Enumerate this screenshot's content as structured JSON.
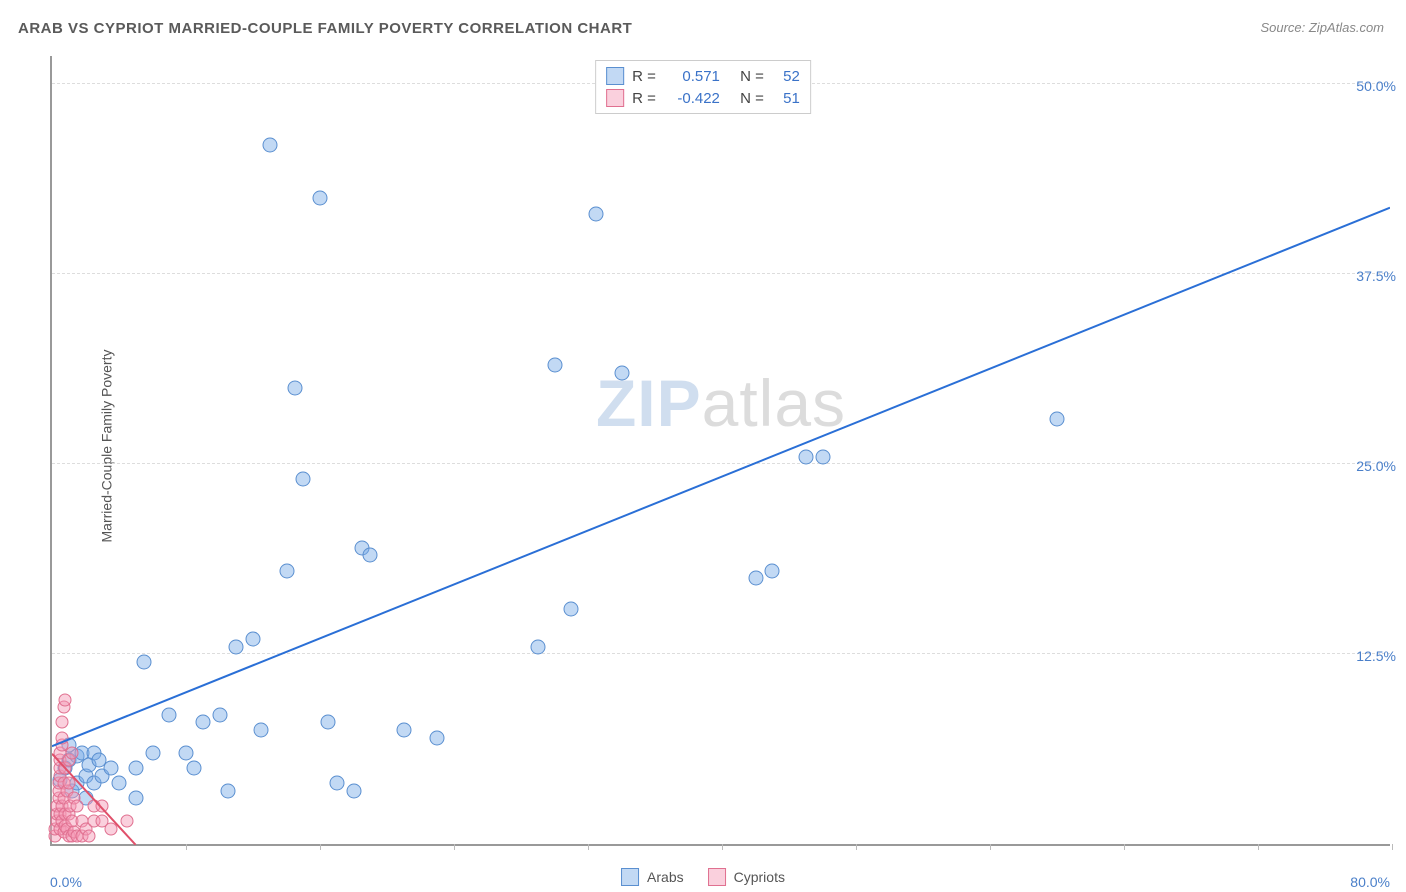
{
  "title": "ARAB VS CYPRIOT MARRIED-COUPLE FAMILY POVERTY CORRELATION CHART",
  "source": "Source: ZipAtlas.com",
  "ylabel": "Married-Couple Family Poverty",
  "watermark": {
    "bold": "ZIP",
    "rest": "atlas"
  },
  "chart": {
    "type": "scatter",
    "xlim": [
      0,
      80
    ],
    "ylim": [
      0,
      52
    ],
    "x_min_label": "0.0%",
    "x_max_label": "80.0%",
    "y_ticks": [
      12.5,
      25.0,
      37.5,
      50.0
    ],
    "y_tick_labels": [
      "12.5%",
      "25.0%",
      "37.5%",
      "50.0%"
    ],
    "x_tick_positions": [
      0,
      8,
      16,
      24,
      32,
      40,
      48,
      56,
      64,
      72,
      80
    ],
    "background_color": "#ffffff",
    "grid_color": "#dddddd",
    "axis_color": "#999999",
    "tick_label_color": "#4a7fc9",
    "marker_size_a": 15,
    "marker_size_b": 13
  },
  "series": [
    {
      "name": "Arabs",
      "color_fill": "rgba(120,170,230,0.45)",
      "color_stroke": "#5a8fd0",
      "r": "0.571",
      "n": "52",
      "regression": {
        "x1": 0,
        "y1": 6.5,
        "x2": 80,
        "y2": 42,
        "stroke": "#2a6fd6",
        "width": 2
      },
      "points": [
        [
          0.5,
          4.2
        ],
        [
          0.8,
          5.0
        ],
        [
          1.0,
          5.5
        ],
        [
          1.0,
          6.5
        ],
        [
          1.2,
          3.5
        ],
        [
          1.5,
          4.0
        ],
        [
          1.5,
          5.8
        ],
        [
          1.8,
          6.0
        ],
        [
          2.0,
          3.0
        ],
        [
          2.0,
          4.5
        ],
        [
          2.2,
          5.2
        ],
        [
          2.5,
          4.0
        ],
        [
          2.5,
          6.0
        ],
        [
          2.8,
          5.5
        ],
        [
          3.0,
          4.5
        ],
        [
          3.5,
          5.0
        ],
        [
          4.0,
          4.0
        ],
        [
          5.0,
          3.0
        ],
        [
          5.0,
          5.0
        ],
        [
          5.5,
          12.0
        ],
        [
          6.0,
          6.0
        ],
        [
          7.0,
          8.5
        ],
        [
          8.0,
          6.0
        ],
        [
          8.5,
          5.0
        ],
        [
          9.0,
          8.0
        ],
        [
          10.0,
          8.5
        ],
        [
          10.5,
          3.5
        ],
        [
          11.0,
          13.0
        ],
        [
          12.0,
          13.5
        ],
        [
          12.5,
          7.5
        ],
        [
          13.0,
          46.0
        ],
        [
          14.0,
          18.0
        ],
        [
          14.5,
          30.0
        ],
        [
          15.0,
          24.0
        ],
        [
          16.0,
          42.5
        ],
        [
          16.5,
          8.0
        ],
        [
          17.0,
          4.0
        ],
        [
          18.0,
          3.5
        ],
        [
          18.5,
          19.5
        ],
        [
          19.0,
          19.0
        ],
        [
          21.0,
          7.5
        ],
        [
          23.0,
          7.0
        ],
        [
          29.0,
          13.0
        ],
        [
          30.0,
          31.5
        ],
        [
          31.0,
          15.5
        ],
        [
          32.5,
          41.5
        ],
        [
          34.0,
          31.0
        ],
        [
          42.0,
          17.5
        ],
        [
          43.0,
          18.0
        ],
        [
          45.0,
          25.5
        ],
        [
          46.0,
          25.5
        ],
        [
          60.0,
          28.0
        ]
      ]
    },
    {
      "name": "Cypriots",
      "color_fill": "rgba(245,150,180,0.45)",
      "color_stroke": "#e07090",
      "r": "-0.422",
      "n": "51",
      "regression": {
        "x1": 0,
        "y1": 6.0,
        "x2": 5,
        "y2": 0,
        "stroke": "#e0506a",
        "width": 2
      },
      "points": [
        [
          0.2,
          0.5
        ],
        [
          0.2,
          1.0
        ],
        [
          0.3,
          1.5
        ],
        [
          0.3,
          2.0
        ],
        [
          0.3,
          2.5
        ],
        [
          0.4,
          3.0
        ],
        [
          0.4,
          3.5
        ],
        [
          0.4,
          4.0
        ],
        [
          0.5,
          1.0
        ],
        [
          0.5,
          2.0
        ],
        [
          0.5,
          4.5
        ],
        [
          0.5,
          5.0
        ],
        [
          0.5,
          5.5
        ],
        [
          0.5,
          6.0
        ],
        [
          0.6,
          1.5
        ],
        [
          0.6,
          2.5
        ],
        [
          0.6,
          6.5
        ],
        [
          0.6,
          7.0
        ],
        [
          0.6,
          8.0
        ],
        [
          0.7,
          0.8
        ],
        [
          0.7,
          3.0
        ],
        [
          0.7,
          4.0
        ],
        [
          0.7,
          9.0
        ],
        [
          0.8,
          1.2
        ],
        [
          0.8,
          2.0
        ],
        [
          0.8,
          5.0
        ],
        [
          0.8,
          9.5
        ],
        [
          0.9,
          1.0
        ],
        [
          0.9,
          3.5
        ],
        [
          1.0,
          0.5
        ],
        [
          1.0,
          2.0
        ],
        [
          1.0,
          4.0
        ],
        [
          1.0,
          5.5
        ],
        [
          1.1,
          2.5
        ],
        [
          1.2,
          0.5
        ],
        [
          1.2,
          1.5
        ],
        [
          1.2,
          6.0
        ],
        [
          1.3,
          0.8
        ],
        [
          1.3,
          3.0
        ],
        [
          1.5,
          0.5
        ],
        [
          1.5,
          2.5
        ],
        [
          1.8,
          0.5
        ],
        [
          1.8,
          1.5
        ],
        [
          2.0,
          1.0
        ],
        [
          2.2,
          0.5
        ],
        [
          2.5,
          1.5
        ],
        [
          2.5,
          2.5
        ],
        [
          3.0,
          1.5
        ],
        [
          3.0,
          2.5
        ],
        [
          3.5,
          1.0
        ],
        [
          4.5,
          1.5
        ]
      ]
    }
  ],
  "stats_box": {
    "r_label": "R =",
    "n_label": "N ="
  },
  "legend": {
    "series_a": "Arabs",
    "series_b": "Cypriots"
  }
}
